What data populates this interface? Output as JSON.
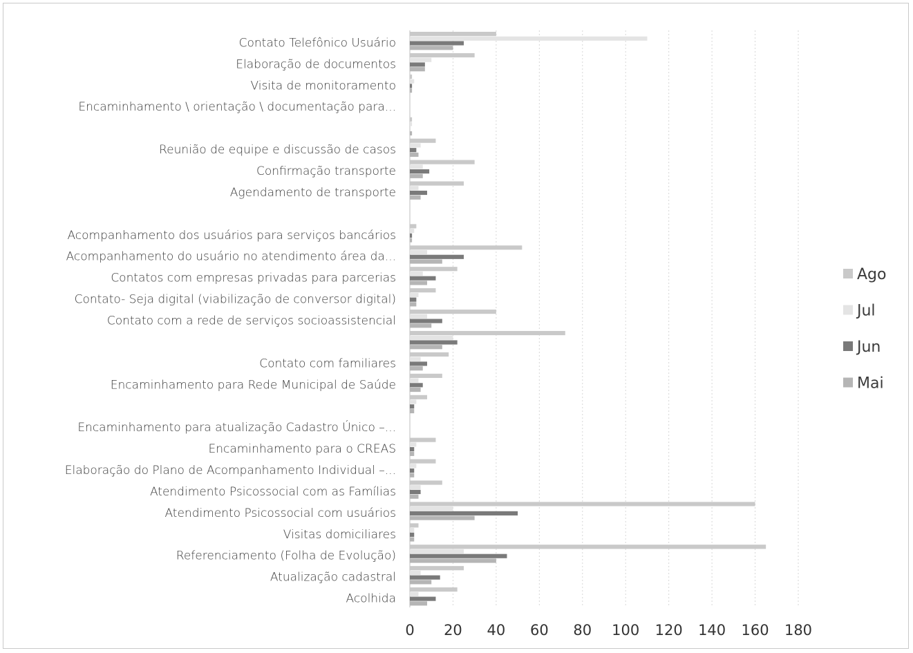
{
  "chart_data": {
    "type": "bar",
    "orientation": "horizontal",
    "title": "",
    "xlabel": "",
    "ylabel": "",
    "xlim": [
      0,
      180
    ],
    "x_ticks": [
      0,
      20,
      40,
      60,
      80,
      100,
      120,
      140,
      160,
      180
    ],
    "grid": true,
    "legend_position": "right",
    "categories": [
      "Contato Telefônico Usuário",
      "Elaboração de documentos",
      "Visita de monitoramento",
      "Encaminhamento \\ orientação \\ documentação para...",
      "",
      "Reunião de equipe e discussão de casos",
      "Confirmação transporte",
      "Agendamento de transporte",
      "",
      "Acompanhamento dos usuários para serviços bancários",
      "Acompanhamento do usuário no atendimento área da...",
      "Contatos com empresas privadas para parcerias",
      "Contato- Seja digital (viabilização de conversor digital)",
      "Contato com a rede de serviços socioassistencial",
      "",
      "Contato com familiares",
      "Encaminhamento para Rede Municipal de Saúde",
      "",
      "Encaminhamento para atualização Cadastro Único –...",
      "Encaminhamento para o CREAS",
      "Elaboração do Plano de Acompanhamento Individual –...",
      "Atendimento Psicossocial com as Famílias",
      "Atendimento Psicossocial com usuários",
      "Visitas domiciliares",
      "Referenciamento (Folha de Evolução)",
      "Atualização cadastral",
      "Acolhida"
    ],
    "series": [
      {
        "name": "Ago",
        "color": "#c9c9c9",
        "values": [
          40,
          30,
          1,
          0,
          1,
          12,
          30,
          25,
          0,
          3,
          52,
          22,
          12,
          40,
          72,
          18,
          15,
          8,
          0,
          12,
          12,
          15,
          160,
          4,
          165,
          25,
          22
        ]
      },
      {
        "name": "Jul",
        "color": "#e4e4e4",
        "values": [
          110,
          10,
          2,
          0,
          1,
          5,
          6,
          4,
          0,
          2,
          8,
          6,
          4,
          8,
          20,
          5,
          4,
          3,
          0,
          3,
          3,
          5,
          20,
          2,
          25,
          5,
          4
        ]
      },
      {
        "name": "Jun",
        "color": "#7a7a7a",
        "values": [
          25,
          7,
          1,
          0,
          0,
          3,
          9,
          8,
          0,
          1,
          25,
          12,
          3,
          15,
          22,
          8,
          6,
          2,
          0,
          2,
          2,
          5,
          50,
          2,
          45,
          14,
          12
        ]
      },
      {
        "name": "Mai",
        "color": "#b5b5b5",
        "values": [
          20,
          7,
          1,
          0,
          1,
          4,
          6,
          5,
          0,
          1,
          15,
          8,
          3,
          10,
          15,
          6,
          5,
          2,
          0,
          2,
          2,
          4,
          30,
          2,
          40,
          10,
          8
        ]
      }
    ]
  }
}
